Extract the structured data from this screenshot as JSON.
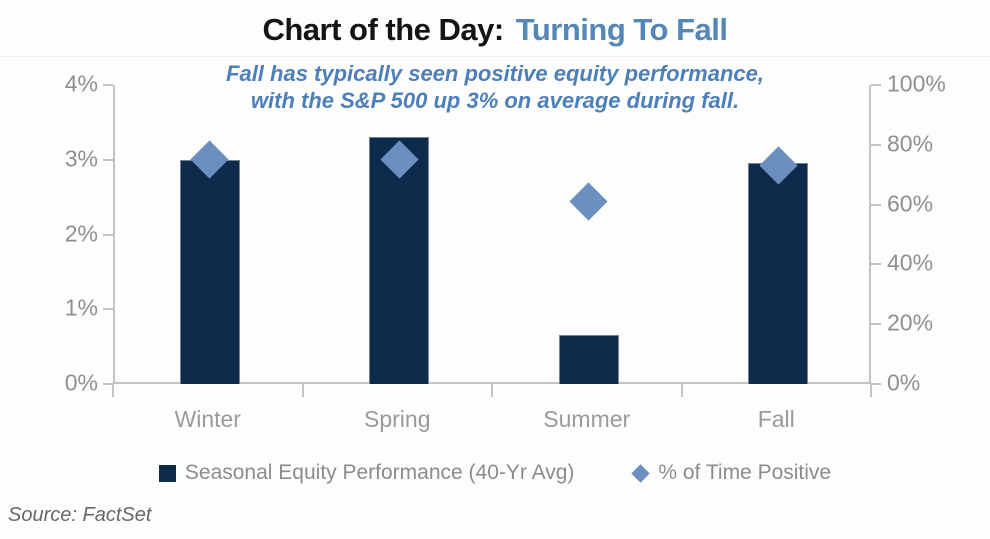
{
  "header": {
    "title_prefix": "Chart of the Day:",
    "title_accent": "Turning To Fall",
    "subtitle_line1": "Fall has typically seen positive equity performance,",
    "subtitle_line2": "with the S&P 500 up 3% on average during fall."
  },
  "chart_data": {
    "type": "bar",
    "title": "Chart of the Day: Turning To Fall",
    "categories": [
      "Winter",
      "Spring",
      "Summer",
      "Fall"
    ],
    "series": [
      {
        "name": "Seasonal Equity Performance (40-Yr Avg)",
        "type": "bar",
        "axis": "left",
        "unit": "%",
        "values": [
          3.0,
          3.3,
          0.65,
          2.95
        ]
      },
      {
        "name": "% of Time Positive",
        "type": "scatter",
        "marker": "diamond",
        "axis": "right",
        "unit": "%",
        "values": [
          75,
          75,
          61,
          73
        ]
      }
    ],
    "left_axis": {
      "min": 0,
      "max": 4,
      "ticks": [
        {
          "value": 4,
          "label": "4%"
        },
        {
          "value": 3,
          "label": "3%"
        },
        {
          "value": 2,
          "label": "2%"
        },
        {
          "value": 1,
          "label": "1%"
        },
        {
          "value": 0,
          "label": "0%"
        }
      ]
    },
    "right_axis": {
      "min": 0,
      "max": 100,
      "ticks": [
        {
          "value": 100,
          "label": "100%"
        },
        {
          "value": 80,
          "label": "80%"
        },
        {
          "value": 60,
          "label": "60%"
        },
        {
          "value": 40,
          "label": "40%"
        },
        {
          "value": 20,
          "label": "20%"
        },
        {
          "value": 0,
          "label": "0%"
        }
      ]
    },
    "grid": false,
    "legend_position": "bottom"
  },
  "legend": {
    "items": [
      {
        "marker": "square",
        "label": "Seasonal Equity Performance (40-Yr Avg)"
      },
      {
        "marker": "diamond",
        "label": "% of Time Positive"
      }
    ]
  },
  "footer": {
    "source": "Source: FactSet"
  },
  "colors": {
    "bar": "#0f2b4c",
    "marker": "#6b90bf",
    "title_accent": "#5586b8",
    "subtitle": "#4d80ba",
    "axis_line": "#c3c3c3"
  }
}
